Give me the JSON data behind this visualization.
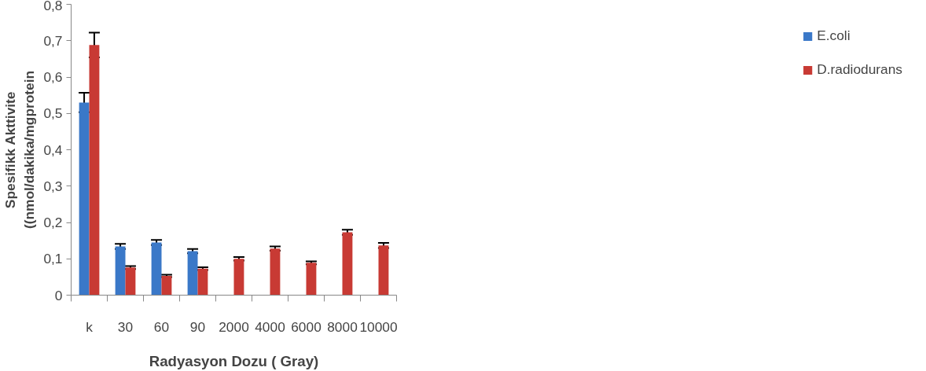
{
  "chart_data": {
    "type": "bar",
    "xlabel": "Radyasyon Dozu ( Gray)",
    "ylabel": "Spesifikk Akttivite\n((nmol/dakika/mgprotein",
    "categories": [
      "k",
      "30",
      "60",
      "90",
      "2000",
      "4000",
      "6000",
      "8000",
      "10000"
    ],
    "series": [
      {
        "name": "E.coli",
        "color": "#3a78c8",
        "values": [
          0.53,
          0.134,
          0.145,
          0.121,
          null,
          null,
          null,
          null,
          null
        ],
        "errors": [
          0.027,
          0.007,
          0.007,
          0.006,
          null,
          null,
          null,
          null,
          null
        ]
      },
      {
        "name": "D.radiodurans",
        "color": "#c83a34",
        "values": [
          0.688,
          0.076,
          0.053,
          0.073,
          0.1,
          0.128,
          0.089,
          0.173,
          0.137
        ],
        "errors": [
          0.034,
          0.004,
          0.003,
          0.004,
          0.005,
          0.006,
          0.004,
          0.007,
          0.007
        ]
      }
    ],
    "ylim": [
      0,
      0.8
    ],
    "yticks": [
      {
        "value": 0,
        "label": "0"
      },
      {
        "value": 0.1,
        "label": "0,1"
      },
      {
        "value": 0.2,
        "label": "0,2"
      },
      {
        "value": 0.3,
        "label": "0,3"
      },
      {
        "value": 0.4,
        "label": "0,4"
      },
      {
        "value": 0.5,
        "label": "0,5"
      },
      {
        "value": 0.6,
        "label": "0,6"
      },
      {
        "value": 0.7,
        "label": "0,7"
      },
      {
        "value": 0.8,
        "label": "0,8"
      }
    ],
    "grid": false,
    "legend": "right"
  }
}
